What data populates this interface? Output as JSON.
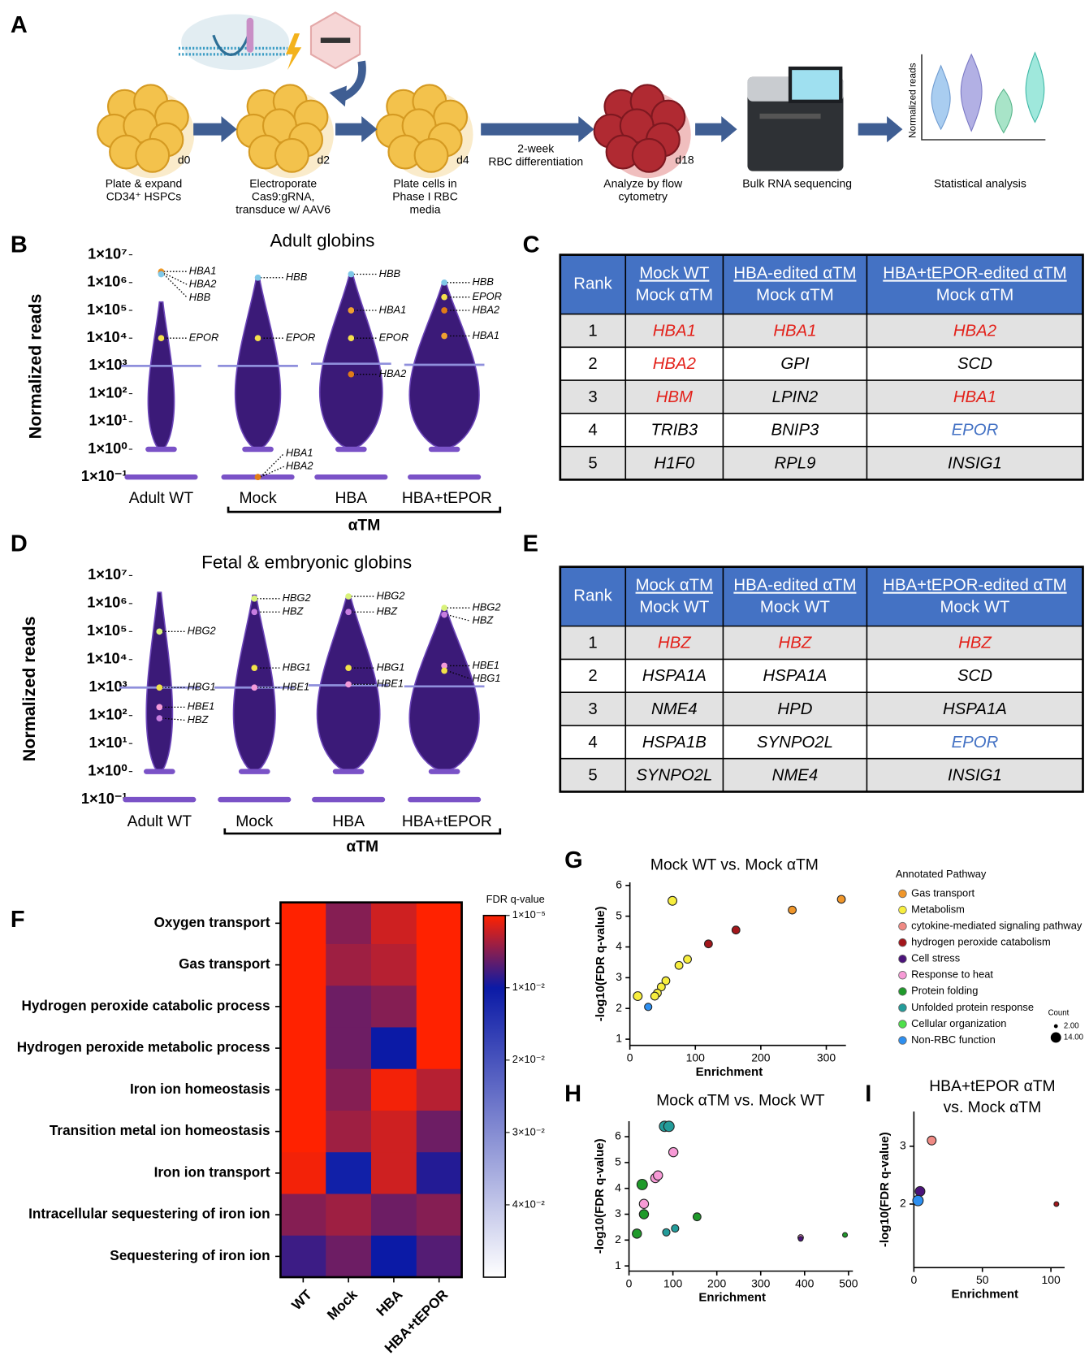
{
  "panel_labels": [
    "A",
    "B",
    "C",
    "D",
    "E",
    "F",
    "G",
    "H",
    "I"
  ],
  "workflow": {
    "steps": [
      {
        "caption": [
          "Plate & expand",
          "CD34⁺ HSPCs"
        ],
        "day": "d0"
      },
      {
        "caption": [
          "Electroporate",
          "Cas9:gRNA,",
          "transduce w/ AAV6"
        ],
        "day": "d2"
      },
      {
        "caption": [
          "Plate cells in",
          "Phase I RBC",
          "media"
        ],
        "day": "d4"
      },
      {
        "caption": [
          "Analyze by flow",
          "cytometry"
        ],
        "day": "d18"
      },
      {
        "caption": [
          "Bulk RNA sequencing"
        ]
      },
      {
        "caption": [
          "Statistical analysis"
        ]
      }
    ],
    "differentiation_label": [
      "2-week",
      "RBC differentiation"
    ],
    "plot_axis_label": "Normalized reads"
  },
  "tables": [
    {
      "header": [
        [
          "Rank"
        ],
        [
          "Mock WT",
          "Mock αTM"
        ],
        [
          "HBA-edited αTM",
          "Mock αTM"
        ],
        [
          "HBA+tEPOR-edited αTM",
          "Mock αTM"
        ]
      ],
      "rows": [
        [
          "1",
          {
            "text": "HBA1",
            "color": "#e3211a"
          },
          {
            "text": "HBA1",
            "color": "#e3211a"
          },
          {
            "text": "HBA2",
            "color": "#e3211a"
          }
        ],
        [
          "2",
          {
            "text": "HBA2",
            "color": "#e3211a"
          },
          "GPI",
          "SCD"
        ],
        [
          "3",
          {
            "text": "HBM",
            "color": "#e3211a"
          },
          "LPIN2",
          {
            "text": "HBA1",
            "color": "#e3211a"
          }
        ],
        [
          "4",
          "TRIB3",
          "BNIP3",
          {
            "text": "EPOR",
            "color": "#4472c4"
          }
        ],
        [
          "5",
          "H1F0",
          "RPL9",
          "INSIG1"
        ]
      ]
    },
    {
      "header": [
        [
          "Rank"
        ],
        [
          "Mock αTM",
          "Mock WT"
        ],
        [
          "HBA-edited αTM",
          "Mock WT"
        ],
        [
          "HBA+tEPOR-edited αTM",
          "Mock WT"
        ]
      ],
      "rows": [
        [
          "1",
          {
            "text": "HBZ",
            "color": "#e3211a"
          },
          {
            "text": "HBZ",
            "color": "#e3211a"
          },
          {
            "text": "HBZ",
            "color": "#e3211a"
          }
        ],
        [
          "2",
          "HSPA1A",
          "HSPA1A",
          "SCD"
        ],
        [
          "3",
          "NME4",
          "HPD",
          "HSPA1A"
        ],
        [
          "4",
          "HSPA1B",
          "SYNPO2L",
          {
            "text": "EPOR",
            "color": "#4472c4"
          }
        ],
        [
          "5",
          "SYNPO2L",
          "NME4",
          "INSIG1"
        ]
      ]
    }
  ],
  "legend": {
    "title": "Annotated Pathway",
    "entries": [
      {
        "name": "Gas transport",
        "color": "#f0962a"
      },
      {
        "name": "Metabolism",
        "color": "#f7ee3e"
      },
      {
        "name": "cytokine-mediated signaling pathway",
        "color": "#f08a84"
      },
      {
        "name": "hydrogen peroxide catabolism",
        "color": "#a3161b"
      },
      {
        "name": "Cell stress",
        "color": "#4b137a"
      },
      {
        "name": "Response to heat",
        "color": "#f79ad6"
      },
      {
        "name": "Protein folding",
        "color": "#1f9a2a"
      },
      {
        "name": "Unfolded protein response",
        "color": "#239c9a"
      },
      {
        "name": "Cellular organization",
        "color": "#4ee04a"
      },
      {
        "name": "Non-RBC function",
        "color": "#2d8ff0"
      }
    ],
    "size_title": "Count",
    "sizes": [
      {
        "value": 2,
        "label": "2.00"
      },
      {
        "value": 14,
        "label": "14.00"
      }
    ]
  },
  "chart_data": [
    {
      "type": "violin",
      "title": "Adult globins",
      "ylabel": "Normalized reads",
      "categories": [
        "Adult WT",
        "Mock",
        "HBA",
        "HBA+tEPOR"
      ],
      "group_label": "αTM",
      "log_y": true,
      "ylim": [
        0.1,
        10000000
      ],
      "yticks": [
        {
          "value": 10000000,
          "label": "1×10⁷"
        },
        {
          "value": 1000000,
          "label": "1×10⁶"
        },
        {
          "value": 100000,
          "label": "1×10⁵"
        },
        {
          "value": 10000,
          "label": "1×10⁴"
        },
        {
          "value": 1000,
          "label": "1×10³"
        },
        {
          "value": 100,
          "label": "1×10²"
        },
        {
          "value": 10,
          "label": "1×10¹"
        },
        {
          "value": 1,
          "label": "1×10⁰"
        },
        {
          "value": 0.1,
          "label": "1×10⁻¹"
        }
      ],
      "medians": [
        1000,
        1000,
        1200,
        1100
      ],
      "median_color": "#8f8fdc",
      "violin_color": "#3b1a78",
      "highlights": [
        {
          "gene": "HBA1",
          "color": "#f0a030",
          "values": [
            2500000,
            0.1,
            100000,
            12000
          ]
        },
        {
          "gene": "HBA2",
          "color": "#e07b18",
          "values": [
            2200000,
            0.1,
            500,
            100000
          ]
        },
        {
          "gene": "HBB",
          "color": "#7fc8e8",
          "values": [
            2000000,
            1500000,
            2000000,
            1000000
          ]
        },
        {
          "gene": "EPOR",
          "color": "#f4e04d",
          "values": [
            10000,
            10000,
            10000,
            300000
          ]
        }
      ]
    },
    {
      "type": "violin",
      "title": "Fetal & embryonic globins",
      "ylabel": "Normalized reads",
      "categories": [
        "Adult WT",
        "Mock",
        "HBA",
        "HBA+tEPOR"
      ],
      "group_label": "αTM",
      "log_y": true,
      "ylim": [
        0.1,
        10000000
      ],
      "yticks": [
        {
          "value": 10000000,
          "label": "1×10⁷"
        },
        {
          "value": 1000000,
          "label": "1×10⁶"
        },
        {
          "value": 100000,
          "label": "1×10⁵"
        },
        {
          "value": 10000,
          "label": "1×10⁴"
        },
        {
          "value": 1000,
          "label": "1×10³"
        },
        {
          "value": 100,
          "label": "1×10²"
        },
        {
          "value": 10,
          "label": "1×10¹"
        },
        {
          "value": 1,
          "label": "1×10⁰"
        },
        {
          "value": 0.1,
          "label": "1×10⁻¹"
        }
      ],
      "medians": [
        1000,
        1000,
        1200,
        1100
      ],
      "median_color": "#8f8fdc",
      "violin_color": "#3b1a78",
      "highlights": [
        {
          "gene": "HBG2",
          "color": "#d9f27a",
          "values": [
            100000,
            1500000,
            1800000,
            700000
          ]
        },
        {
          "gene": "HBZ",
          "color": "#c77de0",
          "values": [
            80,
            500000,
            500000,
            400000
          ]
        },
        {
          "gene": "HBG1",
          "color": "#f2e24a",
          "values": [
            1000,
            5000,
            5000,
            4000
          ]
        },
        {
          "gene": "HBE1",
          "color": "#f39ad9",
          "values": [
            200,
            1000,
            1300,
            6000
          ]
        }
      ]
    },
    {
      "type": "heatmap",
      "categories": [
        "WT",
        "Mock",
        "HBA",
        "HBA+tEPOR"
      ],
      "rows": [
        "Oxygen transport",
        "Gas transport",
        "Hydrogen peroxide catabolic process",
        "Hydrogen peroxide metabolic process",
        "Iron ion homeostasis",
        "Transition metal ion homeostasis",
        "Iron ion transport",
        "Intracellular sequestering of iron ion",
        "Sequestering of iron ion"
      ],
      "values": [
        [
          1e-05,
          0.005,
          0.002,
          1e-05
        ],
        [
          1e-05,
          0.004,
          0.003,
          1e-05
        ],
        [
          1e-05,
          0.006,
          0.005,
          1e-05
        ],
        [
          1e-05,
          0.006,
          0.01,
          1e-05
        ],
        [
          1e-05,
          0.005,
          0.0005,
          0.003
        ],
        [
          1e-05,
          0.004,
          0.002,
          0.006
        ],
        [
          0.0005,
          0.011,
          0.002,
          0.009
        ],
        [
          0.005,
          0.004,
          0.006,
          0.005
        ],
        [
          0.008,
          0.006,
          0.01,
          0.007
        ]
      ],
      "colorbar_title": "FDR q-value",
      "zlim": [
        1e-05,
        0.05
      ],
      "zticks": [
        {
          "value": 1e-05,
          "label": "1×10⁻⁵"
        },
        {
          "value": 0.01,
          "label": "1×10⁻²"
        },
        {
          "value": 0.02,
          "label": "2×10⁻²"
        },
        {
          "value": 0.03,
          "label": "3×10⁻²"
        },
        {
          "value": 0.04,
          "label": "4×10⁻²"
        }
      ],
      "colorscale": [
        [
          1e-05,
          "#ff2200"
        ],
        [
          0.01,
          "#0b1aa6"
        ],
        [
          0.05,
          "#ffffff"
        ]
      ]
    },
    {
      "type": "scatter",
      "title": [
        "Mock WT vs. Mock αTM"
      ],
      "xlabel": "Enrichment",
      "ylabel": "-log10(FDR q-value)",
      "xlim": [
        0,
        330
      ],
      "ylim": [
        0.8,
        6.1
      ],
      "xticks": [
        0,
        100,
        200,
        300
      ],
      "yticks": [
        1,
        2,
        3,
        4,
        5,
        6
      ],
      "series": [
        {
          "color": "#f0962a",
          "x": [
            248,
            323
          ],
          "values": [
            5.2,
            5.55
          ],
          "sizes": [
            8,
            8
          ]
        },
        {
          "color": "#a3161b",
          "x": [
            120,
            162
          ],
          "values": [
            4.1,
            4.55
          ],
          "sizes": [
            8,
            8
          ]
        },
        {
          "color": "#f7ee3e",
          "x": [
            65,
            88,
            75,
            55,
            48,
            42,
            38,
            12
          ],
          "values": [
            5.5,
            3.6,
            3.4,
            2.9,
            2.7,
            2.5,
            2.4,
            2.4
          ],
          "sizes": [
            10,
            8,
            8,
            8,
            8,
            8,
            8,
            10
          ]
        },
        {
          "color": "#2d8ff0",
          "x": [
            28
          ],
          "values": [
            2.05
          ],
          "sizes": [
            7
          ]
        }
      ]
    },
    {
      "type": "scatter",
      "title": [
        "Mock αTM vs. Mock WT"
      ],
      "xlabel": "Enrichment",
      "ylabel": "-log10(FDR q-value)",
      "xlim": [
        0,
        510
      ],
      "ylim": [
        0.8,
        6.6
      ],
      "xticks": [
        0,
        100,
        200,
        300,
        400,
        500
      ],
      "yticks": [
        1,
        2,
        3,
        4,
        5,
        6
      ],
      "series": [
        {
          "color": "#1f9a2a",
          "x": [
            18,
            34,
            30,
            155,
            492
          ],
          "values": [
            2.25,
            3.0,
            4.15,
            2.9,
            2.2
          ],
          "sizes": [
            11,
            11,
            14,
            8,
            3
          ]
        },
        {
          "color": "#f79ad6",
          "x": [
            101,
            60,
            66,
            34,
            391
          ],
          "values": [
            5.4,
            4.4,
            4.5,
            3.4,
            2.1
          ],
          "sizes": [
            11,
            11,
            11,
            11,
            4
          ]
        },
        {
          "color": "#239c9a",
          "x": [
            81,
            91,
            85,
            105
          ],
          "values": [
            6.4,
            6.4,
            2.3,
            2.45
          ],
          "sizes": [
            14,
            14,
            7,
            7
          ]
        },
        {
          "color": "#4b137a",
          "x": [
            391
          ],
          "values": [
            2.05
          ],
          "sizes": [
            3
          ]
        }
      ]
    },
    {
      "type": "scatter",
      "title": [
        "HBA+tEPOR αTM",
        "vs. Mock αTM"
      ],
      "xlabel": "Enrichment",
      "ylabel": "-log10(FDR q-value)",
      "xlim": [
        0,
        110
      ],
      "ylim": [
        0.9,
        3.6
      ],
      "xticks": [
        0,
        50,
        100
      ],
      "yticks": [
        2,
        3
      ],
      "series": [
        {
          "color": "#f08a84",
          "x": [
            13
          ],
          "values": [
            3.1
          ],
          "sizes": [
            10
          ]
        },
        {
          "color": "#4b137a",
          "x": [
            4.5
          ],
          "values": [
            2.22
          ],
          "sizes": [
            12
          ]
        },
        {
          "color": "#2d8ff0",
          "x": [
            3
          ],
          "values": [
            2.06
          ],
          "sizes": [
            14
          ]
        },
        {
          "color": "#a3161b",
          "x": [
            104
          ],
          "values": [
            2.0
          ],
          "sizes": [
            3
          ]
        }
      ]
    }
  ]
}
